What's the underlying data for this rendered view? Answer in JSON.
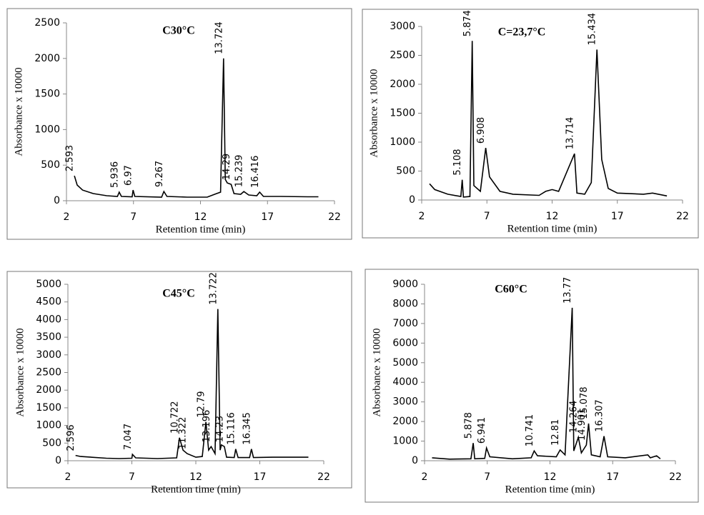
{
  "chart_data": [
    {
      "type": "line",
      "title": "C30°C",
      "x_label": "Retention time (min)",
      "y_label": "Absorbance x 10000",
      "xlim": [
        2,
        22
      ],
      "xticks": [
        2,
        7,
        12,
        17,
        22
      ],
      "ylim": [
        0,
        2500
      ],
      "yticks": [
        0,
        500,
        1000,
        1500,
        2000,
        2500
      ],
      "color": "#000000",
      "x": [
        2.593,
        2.8,
        3.2,
        4,
        5,
        5.8,
        5.936,
        6.1,
        6.9,
        6.97,
        7.1,
        9.1,
        9.267,
        9.5,
        11,
        12.5,
        13.2,
        13.5,
        13.724,
        13.85,
        14,
        14.29,
        14.5,
        15,
        15.239,
        15.6,
        16.2,
        16.416,
        16.7,
        18,
        20,
        20.8
      ],
      "values": [
        350,
        220,
        150,
        100,
        70,
        60,
        120,
        60,
        55,
        150,
        60,
        50,
        130,
        60,
        50,
        50,
        100,
        120,
        2000,
        300,
        250,
        230,
        100,
        90,
        130,
        80,
        70,
        120,
        60,
        60,
        55,
        55
      ],
      "peaks": [
        2.593,
        5.936,
        6.97,
        9.267,
        13.724,
        14.29,
        15.239,
        16.416
      ]
    },
    {
      "type": "line",
      "title": "C=23,7°C",
      "x_label": "Retention time (min)",
      "y_label": "Absorbance x 10000",
      "xlim": [
        2,
        22
      ],
      "xticks": [
        2,
        7,
        12,
        17,
        22
      ],
      "ylim": [
        0,
        3000
      ],
      "yticks": [
        0,
        500,
        1000,
        1500,
        2000,
        2500,
        3000
      ],
      "color": "#000000",
      "x": [
        2.6,
        3,
        4,
        5,
        5.108,
        5.2,
        5.7,
        5.874,
        6,
        6.5,
        6.908,
        7.2,
        8,
        9,
        11,
        11.5,
        12,
        12.5,
        13.714,
        13.9,
        14.5,
        15,
        15.434,
        15.8,
        16.3,
        17,
        19,
        19.7,
        20.8
      ],
      "values": [
        280,
        180,
        100,
        60,
        350,
        50,
        60,
        2750,
        250,
        150,
        900,
        400,
        150,
        100,
        80,
        150,
        180,
        150,
        800,
        120,
        100,
        300,
        2600,
        700,
        200,
        120,
        100,
        120,
        70
      ],
      "peaks": [
        5.108,
        5.874,
        6.908,
        13.714,
        15.434
      ]
    },
    {
      "type": "line",
      "title": "C45°C",
      "x_label": "Retention time (min)",
      "y_label": "Absorbance x 10000",
      "xlim": [
        2,
        22
      ],
      "xticks": [
        2,
        7,
        12,
        17,
        22
      ],
      "ylim": [
        0,
        5000
      ],
      "yticks": [
        0,
        500,
        1000,
        1500,
        2000,
        2500,
        3000,
        3500,
        4000,
        4500,
        5000
      ],
      "color": "#000000",
      "x": [
        2.596,
        3,
        5,
        6,
        7,
        7.047,
        7.3,
        9,
        10.5,
        10.722,
        11,
        11.322,
        12,
        12.5,
        12.79,
        13,
        13.196,
        13.5,
        13.722,
        13.9,
        14,
        14.23,
        14.4,
        15,
        15.116,
        15.3,
        16.2,
        16.345,
        16.5,
        18,
        20.8
      ],
      "values": [
        150,
        120,
        70,
        60,
        70,
        180,
        80,
        60,
        80,
        650,
        300,
        200,
        100,
        120,
        1100,
        300,
        400,
        200,
        4300,
        300,
        450,
        400,
        100,
        90,
        330,
        90,
        90,
        330,
        90,
        100,
        100
      ],
      "peaks": [
        2.596,
        7.047,
        10.722,
        11.322,
        12.79,
        13.196,
        13.722,
        14.23,
        15.116,
        16.345
      ]
    },
    {
      "type": "line",
      "title": "C60°C",
      "x_label": "Retention time (min)",
      "y_label": "Absorbance x 10000",
      "xlim": [
        2,
        22
      ],
      "xticks": [
        2,
        7,
        12,
        17,
        22
      ],
      "ylim": [
        0,
        9000
      ],
      "yticks": [
        0,
        1000,
        2000,
        3000,
        4000,
        5000,
        6000,
        7000,
        8000,
        9000
      ],
      "color": "#000000",
      "x": [
        2.6,
        4,
        5.7,
        5.878,
        6,
        6.8,
        6.941,
        7.2,
        9,
        10.5,
        10.741,
        11,
        12.5,
        12.81,
        13.2,
        13.77,
        13.9,
        14.264,
        14.5,
        14.901,
        15.078,
        15.3,
        16,
        16.307,
        16.6,
        18,
        19.8,
        20,
        20.5,
        20.8
      ],
      "values": [
        150,
        80,
        100,
        900,
        100,
        120,
        650,
        200,
        100,
        150,
        500,
        250,
        200,
        550,
        300,
        7800,
        500,
        1200,
        400,
        800,
        1900,
        300,
        200,
        1250,
        200,
        150,
        300,
        150,
        250,
        100
      ],
      "peaks": [
        5.878,
        6.941,
        10.741,
        12.81,
        13.77,
        14.264,
        14.901,
        15.078,
        16.307
      ]
    }
  ]
}
